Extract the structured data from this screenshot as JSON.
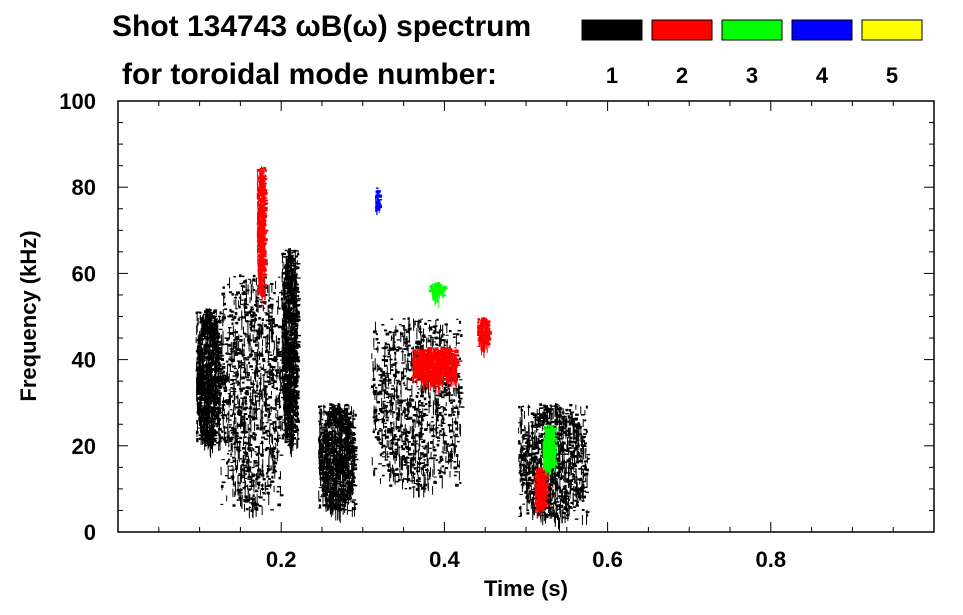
{
  "chart_data": {
    "type": "scatter",
    "title": "Shot 134743 ωB(ω) spectrum",
    "subtitle": "for toroidal mode number:",
    "xlabel": "Time (s)",
    "ylabel": "Frequency (kHz)",
    "xlim": [
      0.0,
      1.0
    ],
    "ylim": [
      0,
      100
    ],
    "x_ticks": [
      0.2,
      0.4,
      0.6,
      0.8
    ],
    "x_tick_labels": [
      "0.2",
      "0.4",
      "0.6",
      "0.8"
    ],
    "y_ticks": [
      0,
      20,
      40,
      60,
      80,
      100
    ],
    "y_tick_labels": [
      "0",
      "20",
      "40",
      "60",
      "80",
      "100"
    ],
    "grid": false,
    "legend_position": "top-right",
    "series": [
      {
        "name": "1",
        "color": "#000000"
      },
      {
        "name": "2",
        "color": "#ff0000"
      },
      {
        "name": "3",
        "color": "#00ff00"
      },
      {
        "name": "4",
        "color": "#0000ff"
      },
      {
        "name": "5",
        "color": "#ffff00"
      }
    ],
    "regions": [
      {
        "mode": 1,
        "t": [
          0.095,
          0.125
        ],
        "f": [
          20,
          52
        ]
      },
      {
        "mode": 1,
        "t": [
          0.125,
          0.2
        ],
        "f": [
          5,
          60
        ]
      },
      {
        "mode": 1,
        "t": [
          0.2,
          0.22
        ],
        "f": [
          20,
          66
        ]
      },
      {
        "mode": 1,
        "t": [
          0.245,
          0.29
        ],
        "f": [
          5,
          30
        ]
      },
      {
        "mode": 1,
        "t": [
          0.31,
          0.42
        ],
        "f": [
          10,
          50
        ]
      },
      {
        "mode": 1,
        "t": [
          0.49,
          0.575
        ],
        "f": [
          3,
          30
        ]
      },
      {
        "mode": 2,
        "t": [
          0.36,
          0.415
        ],
        "f": [
          35,
          43
        ]
      },
      {
        "mode": 2,
        "t": [
          0.44,
          0.455
        ],
        "f": [
          43,
          50
        ]
      },
      {
        "mode": 2,
        "t": [
          0.51,
          0.525
        ],
        "f": [
          6,
          15
        ]
      },
      {
        "mode": 2,
        "t": [
          0.17,
          0.18
        ],
        "f": [
          55,
          85
        ]
      },
      {
        "mode": 3,
        "t": [
          0.38,
          0.4
        ],
        "f": [
          55,
          58
        ]
      },
      {
        "mode": 3,
        "t": [
          0.52,
          0.535
        ],
        "f": [
          15,
          25
        ]
      },
      {
        "mode": 4,
        "t": [
          0.315,
          0.32
        ],
        "f": [
          75,
          80
        ]
      }
    ]
  }
}
